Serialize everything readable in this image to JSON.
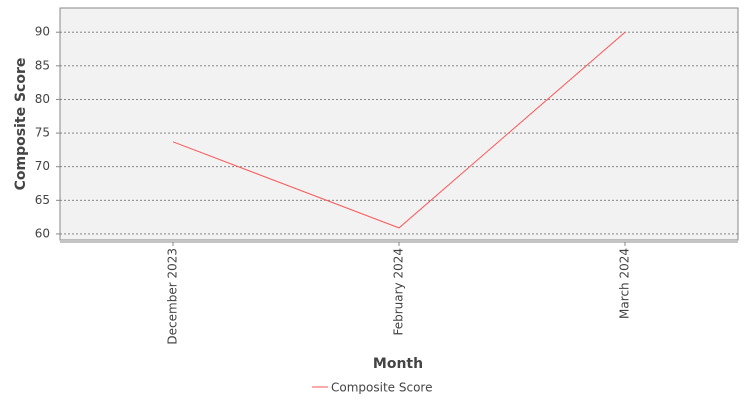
{
  "chart_data": {
    "type": "line",
    "x_label": "Month",
    "y_label": "Composite Score",
    "categories": [
      "December 2023",
      "February 2024",
      "March 2024"
    ],
    "series": [
      {
        "name": "Composite Score",
        "color": "#ff5555",
        "values": [
          73.7,
          60.9,
          90
        ]
      }
    ],
    "ylim": [
      59.1,
      93.6
    ],
    "yticks": [
      60,
      65,
      70,
      75,
      80,
      85,
      90
    ],
    "grid": true,
    "legend": "bottom"
  }
}
